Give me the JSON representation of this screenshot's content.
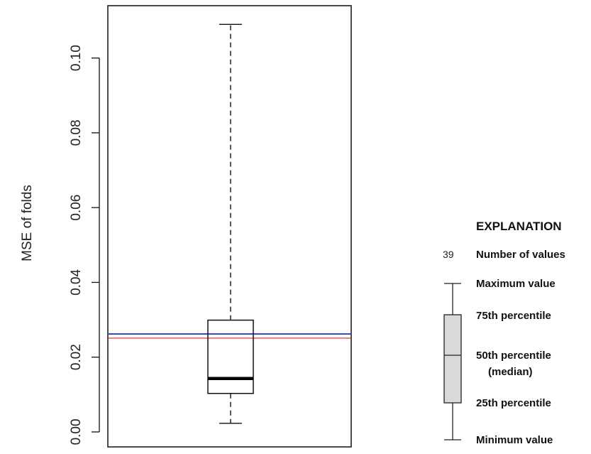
{
  "chart_data": {
    "type": "boxplot",
    "ylabel": "MSE of folds",
    "ylim": [
      -0.004,
      0.114
    ],
    "yticks": [
      "0.00",
      "0.02",
      "0.04",
      "0.06",
      "0.08",
      "0.10"
    ],
    "ytick_values": [
      0.0,
      0.02,
      0.04,
      0.06,
      0.08,
      0.1
    ],
    "box": {
      "min": 0.0023,
      "q1": 0.0103,
      "median": 0.0143,
      "q3": 0.0299,
      "max": 0.109
    },
    "reference_lines": [
      {
        "value": 0.0262,
        "color": "#2b3fd1"
      },
      {
        "value": 0.0251,
        "color": "#ef6f6f"
      }
    ],
    "grid": false
  },
  "legend": {
    "title": "EXPLANATION",
    "count_value": "39",
    "count_label": "Number of values",
    "max_label": "Maximum value",
    "q3_label": "75th percentile",
    "median_label": "50th percentile",
    "median_sub": "(median)",
    "q1_label": "25th percentile",
    "min_label": "Minimum value"
  }
}
